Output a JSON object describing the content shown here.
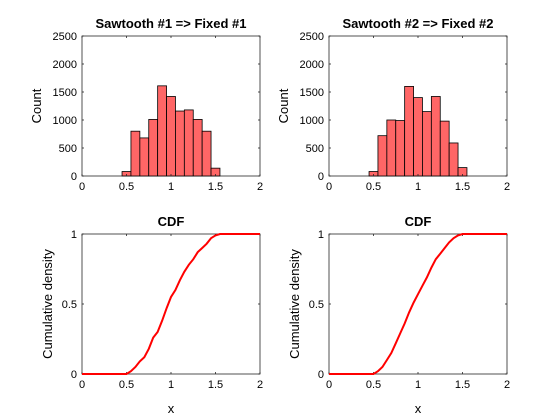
{
  "chart_data": [
    {
      "type": "bar",
      "title": "Sawtooth #1 => Fixed #1",
      "xlabel": "",
      "ylabel": "Count",
      "xlim": [
        0,
        2
      ],
      "ylim": [
        0,
        2500
      ],
      "xticks": [
        "0",
        "0.5",
        "1",
        "1.5",
        "2"
      ],
      "yticks": [
        "0",
        "500",
        "1000",
        "1500",
        "2000",
        "2500"
      ],
      "bin_width": 0.1,
      "bins": [
        {
          "x0": 0.45,
          "count": 80
        },
        {
          "x0": 0.55,
          "count": 800
        },
        {
          "x0": 0.65,
          "count": 680
        },
        {
          "x0": 0.75,
          "count": 1010
        },
        {
          "x0": 0.85,
          "count": 1610
        },
        {
          "x0": 0.95,
          "count": 1420
        },
        {
          "x0": 1.05,
          "count": 1160
        },
        {
          "x0": 1.15,
          "count": 1180
        },
        {
          "x0": 1.25,
          "count": 1010
        },
        {
          "x0": 1.35,
          "count": 800
        },
        {
          "x0": 1.45,
          "count": 140
        }
      ],
      "bar_color": "#ff6666",
      "edge_color": "#000000"
    },
    {
      "type": "bar",
      "title": "Sawtooth #2 => Fixed #2",
      "xlabel": "",
      "ylabel": "Count",
      "xlim": [
        0,
        2
      ],
      "ylim": [
        0,
        2500
      ],
      "xticks": [
        "0",
        "0.5",
        "1",
        "1.5",
        "2"
      ],
      "yticks": [
        "0",
        "500",
        "1000",
        "1500",
        "2000",
        "2500"
      ],
      "bin_width": 0.1,
      "bins": [
        {
          "x0": 0.45,
          "count": 80
        },
        {
          "x0": 0.55,
          "count": 720
        },
        {
          "x0": 0.65,
          "count": 1000
        },
        {
          "x0": 0.75,
          "count": 990
        },
        {
          "x0": 0.85,
          "count": 1600
        },
        {
          "x0": 0.95,
          "count": 1400
        },
        {
          "x0": 1.05,
          "count": 1150
        },
        {
          "x0": 1.15,
          "count": 1420
        },
        {
          "x0": 1.25,
          "count": 980
        },
        {
          "x0": 1.35,
          "count": 590
        },
        {
          "x0": 1.45,
          "count": 150
        }
      ],
      "bar_color": "#ff6666",
      "edge_color": "#000000"
    },
    {
      "type": "line",
      "title": "CDF",
      "xlabel": "x",
      "ylabel": "Cumulative density",
      "xlim": [
        0,
        2
      ],
      "ylim": [
        0,
        1
      ],
      "xticks": [
        "0",
        "0.5",
        "1",
        "1.5",
        "2"
      ],
      "yticks": [
        "0",
        "0.5",
        "1"
      ],
      "x": [
        0,
        0.5,
        0.55,
        0.6,
        0.65,
        0.7,
        0.75,
        0.8,
        0.85,
        0.9,
        0.95,
        1.0,
        1.05,
        1.1,
        1.15,
        1.2,
        1.25,
        1.3,
        1.35,
        1.4,
        1.45,
        1.5,
        1.55,
        2.0
      ],
      "y": [
        0,
        0,
        0.02,
        0.05,
        0.09,
        0.12,
        0.18,
        0.26,
        0.3,
        0.38,
        0.47,
        0.55,
        0.6,
        0.67,
        0.73,
        0.78,
        0.82,
        0.87,
        0.9,
        0.93,
        0.97,
        0.99,
        1.0,
        1.0
      ],
      "line_color": "#ff0000"
    },
    {
      "type": "line",
      "title": "CDF",
      "xlabel": "x",
      "ylabel": "Cumulative density",
      "xlim": [
        0,
        2
      ],
      "ylim": [
        0,
        1
      ],
      "xticks": [
        "0",
        "0.5",
        "1",
        "1.5",
        "2"
      ],
      "yticks": [
        "0",
        "0.5",
        "1"
      ],
      "x": [
        0,
        0.5,
        0.55,
        0.6,
        0.65,
        0.7,
        0.75,
        0.8,
        0.85,
        0.9,
        0.95,
        1.0,
        1.05,
        1.1,
        1.15,
        1.2,
        1.25,
        1.3,
        1.35,
        1.4,
        1.45,
        1.5,
        1.55,
        2.0
      ],
      "y": [
        0,
        0,
        0.02,
        0.05,
        0.1,
        0.15,
        0.22,
        0.29,
        0.36,
        0.44,
        0.51,
        0.57,
        0.63,
        0.69,
        0.76,
        0.82,
        0.86,
        0.9,
        0.94,
        0.97,
        0.99,
        1.0,
        1.0,
        1.0
      ],
      "line_color": "#ff0000"
    }
  ]
}
